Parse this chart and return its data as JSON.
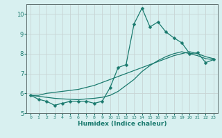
{
  "xlabel": "Humidex (Indice chaleur)",
  "background_color": "#d8f0f0",
  "grid_color": "#c8d4d4",
  "line_color": "#1a7a6e",
  "xlim": [
    -0.5,
    23.5
  ],
  "ylim": [
    5,
    10.5
  ],
  "yticks": [
    5,
    6,
    7,
    8,
    9,
    10
  ],
  "xticks": [
    0,
    1,
    2,
    3,
    4,
    5,
    6,
    7,
    8,
    9,
    10,
    11,
    12,
    13,
    14,
    15,
    16,
    17,
    18,
    19,
    20,
    21,
    22,
    23
  ],
  "series1_x": [
    0,
    1,
    2,
    3,
    4,
    5,
    6,
    7,
    8,
    9,
    10,
    11,
    12,
    13,
    14,
    15,
    16,
    17,
    18,
    19,
    20,
    21,
    22,
    23
  ],
  "series1_y": [
    5.9,
    5.7,
    5.6,
    5.4,
    5.5,
    5.6,
    5.6,
    5.6,
    5.5,
    5.6,
    6.3,
    7.3,
    7.45,
    9.5,
    10.3,
    9.35,
    9.6,
    9.1,
    8.8,
    8.55,
    8.0,
    8.05,
    7.55,
    7.7
  ],
  "series2_x": [
    0,
    1,
    2,
    3,
    4,
    5,
    6,
    7,
    8,
    9,
    10,
    11,
    12,
    13,
    14,
    15,
    16,
    17,
    18,
    19,
    20,
    21,
    22,
    23
  ],
  "series2_y": [
    5.9,
    5.9,
    6.0,
    6.05,
    6.1,
    6.15,
    6.2,
    6.3,
    6.4,
    6.55,
    6.7,
    6.85,
    7.0,
    7.15,
    7.3,
    7.45,
    7.6,
    7.75,
    7.9,
    8.0,
    8.1,
    8.0,
    7.85,
    7.75
  ],
  "series3_x": [
    0,
    1,
    2,
    3,
    4,
    5,
    6,
    7,
    8,
    9,
    10,
    11,
    12,
    13,
    14,
    15,
    16,
    17,
    18,
    19,
    20,
    21,
    22,
    23
  ],
  "series3_y": [
    5.9,
    5.85,
    5.8,
    5.75,
    5.72,
    5.7,
    5.68,
    5.72,
    5.75,
    5.8,
    5.9,
    6.1,
    6.4,
    6.7,
    7.1,
    7.4,
    7.65,
    7.85,
    8.0,
    8.1,
    8.0,
    7.9,
    7.75,
    7.7
  ],
  "xtick_fontsize": 4.5,
  "ytick_fontsize": 6.0,
  "xlabel_fontsize": 6.5,
  "marker_size": 2.5,
  "linewidth": 0.9
}
